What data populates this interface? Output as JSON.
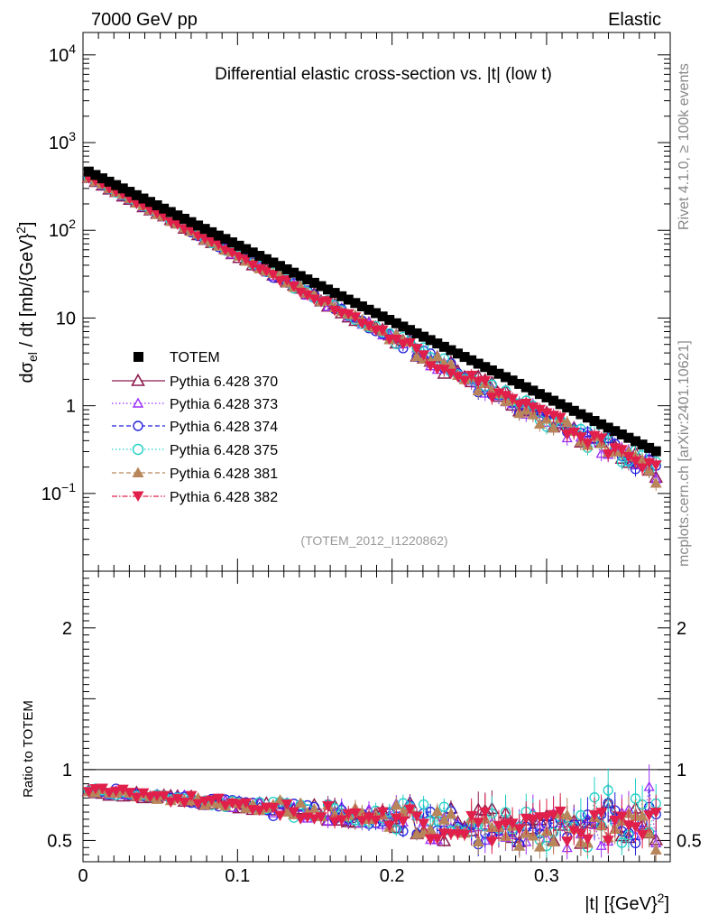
{
  "header": {
    "left": "7000 GeV pp",
    "right": "Elastic"
  },
  "side_labels": {
    "rivet": "Rivet 4.1.0, ≥ 100k events",
    "mcplots": "mcplots.cern.ch [arXiv:2401.10621]"
  },
  "colors": {
    "TOTEM": "#000000",
    "p370": "#8b1a4f",
    "p373": "#9b30ff",
    "p374": "#2222dd",
    "p375": "#20d0c8",
    "p381": "#b8865a",
    "p382": "#e0204a"
  },
  "chart_data": [
    {
      "type": "scatter",
      "title": "Differential elastic cross-section vs. |t| (low t)",
      "ylabel": "dσ_el / dt [mb/{GeV}^2]",
      "xlabel": "|t| [{GeV}^2]",
      "yscale": "log",
      "xlim": [
        0,
        0.38
      ],
      "ylim": [
        0.013,
        18000
      ],
      "y_ticks": [
        {
          "value": 10000,
          "base": "10",
          "exp": "4"
        },
        {
          "value": 1000,
          "base": "10",
          "exp": "3"
        },
        {
          "value": 100,
          "base": "10",
          "exp": "2"
        },
        {
          "value": 10,
          "base": "10",
          "exp": ""
        },
        {
          "value": 1,
          "base": "1",
          "exp": ""
        },
        {
          "value": 0.1,
          "base": "10",
          "exp": "−1"
        }
      ],
      "x_ticks": [
        {
          "value": 0,
          "label": "0"
        },
        {
          "value": 0.1,
          "label": "0.1"
        },
        {
          "value": 0.2,
          "label": "0.2"
        },
        {
          "value": 0.3,
          "label": "0.3"
        }
      ],
      "reference_label": "(TOTEM_2012_I1220862)",
      "data_model": {
        "TOTEM": {
          "a0": 503,
          "slope": 20.0,
          "t_min": 0.0037,
          "t_max": 0.3708,
          "n_points": 84
        },
        "pythia_a0": 415,
        "pythia_slope": 21.3
      },
      "legend_position": "left-middle",
      "series": [
        {
          "id": "TOTEM",
          "name": "TOTEM",
          "marker": "square-filled",
          "line": "none"
        },
        {
          "id": "p370",
          "name": "Pythia 6.428 370",
          "marker": "triangle-up-open",
          "line": "solid"
        },
        {
          "id": "p373",
          "name": "Pythia 6.428 373",
          "marker": "triangle-up-open-small",
          "line": "dotted"
        },
        {
          "id": "p374",
          "name": "Pythia 6.428 374",
          "marker": "circle-open",
          "line": "dashed"
        },
        {
          "id": "p375",
          "name": "Pythia 6.428 375",
          "marker": "circle-open",
          "line": "dotted"
        },
        {
          "id": "p381",
          "name": "Pythia 6.428 381",
          "marker": "triangle-up-filled",
          "line": "dashed"
        },
        {
          "id": "p382",
          "name": "Pythia 6.428 382",
          "marker": "triangle-down-filled",
          "line": "dashdot"
        }
      ]
    },
    {
      "type": "scatter",
      "ylabel": "Ratio to TOTEM",
      "xlim": [
        0,
        0.38
      ],
      "ylim": [
        0.35,
        2.4
      ],
      "y_ticks": [
        {
          "value": 0.5,
          "label": "0.5"
        },
        {
          "value": 1,
          "label": "1"
        },
        {
          "value": 2,
          "label": "2"
        }
      ],
      "reference_line": 1,
      "ratio_trend": {
        "start": 0.86,
        "end_at_0.25": 0.6,
        "end": 0.55
      }
    }
  ]
}
